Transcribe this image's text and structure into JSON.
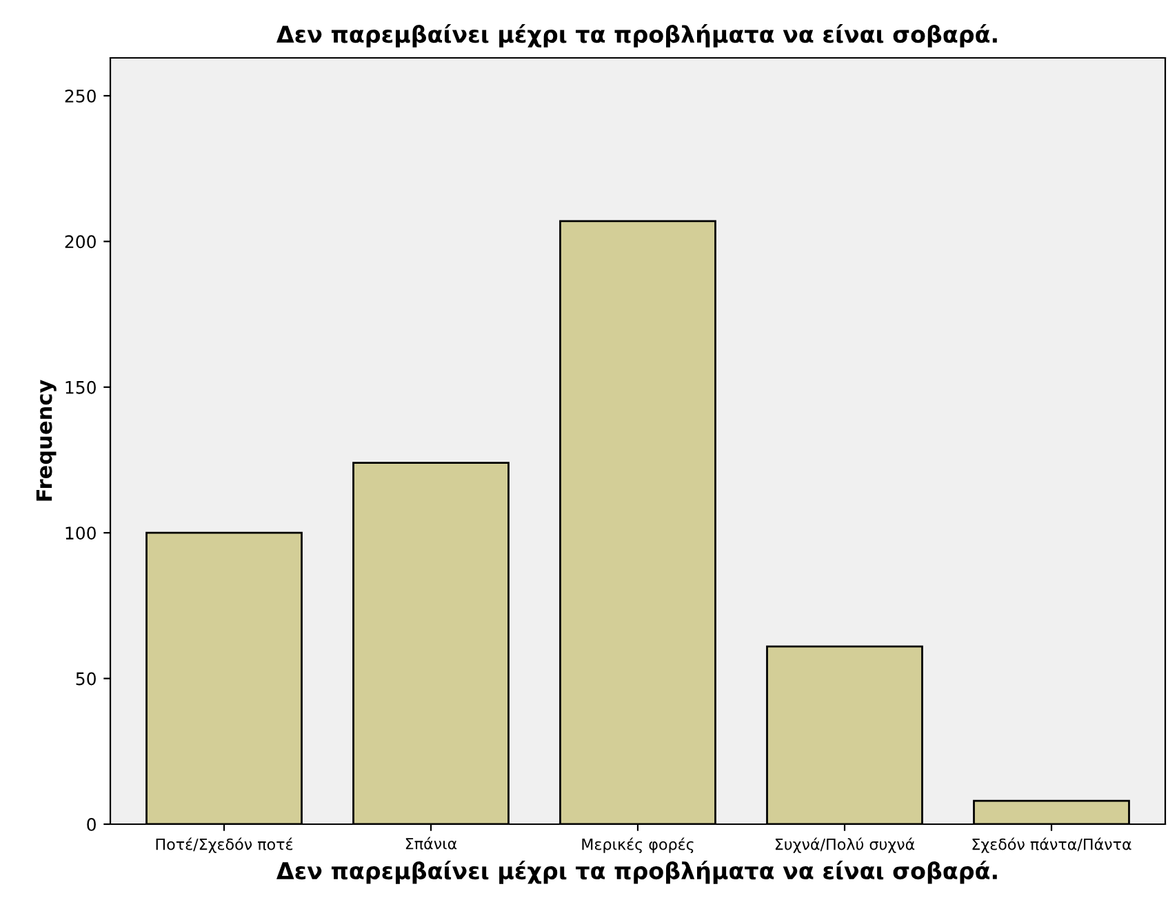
{
  "chart_data": {
    "type": "bar",
    "title": "Δεν παρεμβαίνει μέχρι τα προβλήματα να είναι σοβαρά.",
    "xlabel": "Δεν παρεμβαίνει μέχρι τα προβλήματα να είναι σοβαρά.",
    "ylabel": "Frequency",
    "categories": [
      "Ποτέ/Σχεδόν ποτέ",
      "Σπάνια",
      "Μερικές φορές",
      "Συχνά/Πολύ συχνά",
      "Σχεδόν πάντα/Πάντα"
    ],
    "values": [
      100,
      124,
      207,
      61,
      8
    ],
    "color": "#d3ce97",
    "ylim": [
      0,
      263
    ],
    "yticks": [
      0,
      50,
      100,
      150,
      200,
      250
    ],
    "grid": false,
    "legend": false
  }
}
